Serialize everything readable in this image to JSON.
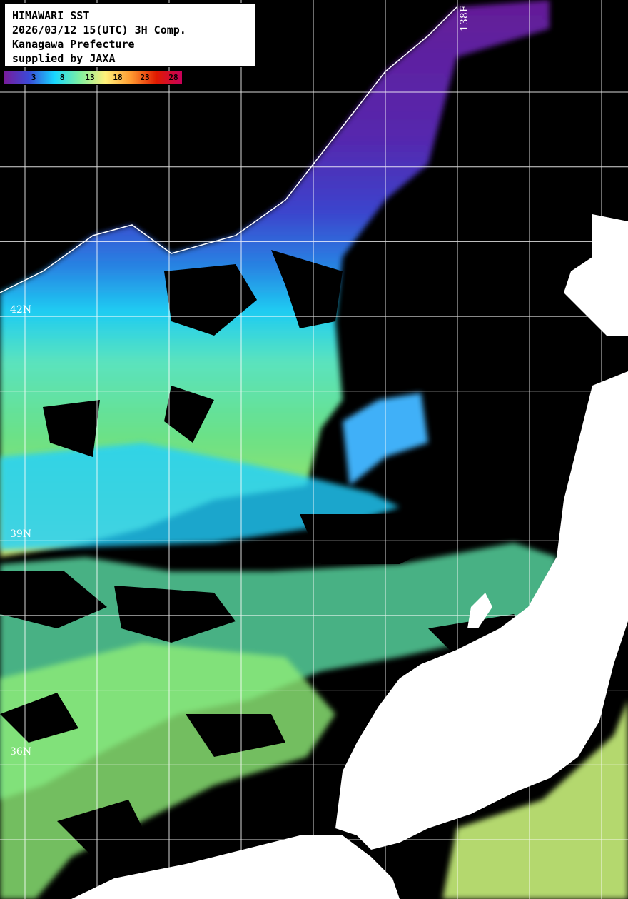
{
  "info_box": {
    "lines": [
      "HIMAWARI SST",
      "2026/03/12 15(UTC) 3H Comp.",
      "Kanagawa Prefecture",
      "supplied by JAXA"
    ]
  },
  "colorbar": {
    "labels": [
      "3",
      "8",
      "13",
      "18",
      "23",
      "28"
    ],
    "unit_range": [
      -2,
      31
    ],
    "colors": [
      "#7a1a9a",
      "#3a4ad8",
      "#18d8ff",
      "#80f0a0",
      "#fff07a",
      "#ff9a30",
      "#e01a00",
      "#c8005a"
    ]
  },
  "grid_labels": {
    "lat": [
      "42N",
      "39N",
      "36N"
    ],
    "lon": [
      "138E"
    ]
  },
  "colors": {
    "land": "#ffffff",
    "no_data": "#000000",
    "grid": "#ffffff"
  }
}
